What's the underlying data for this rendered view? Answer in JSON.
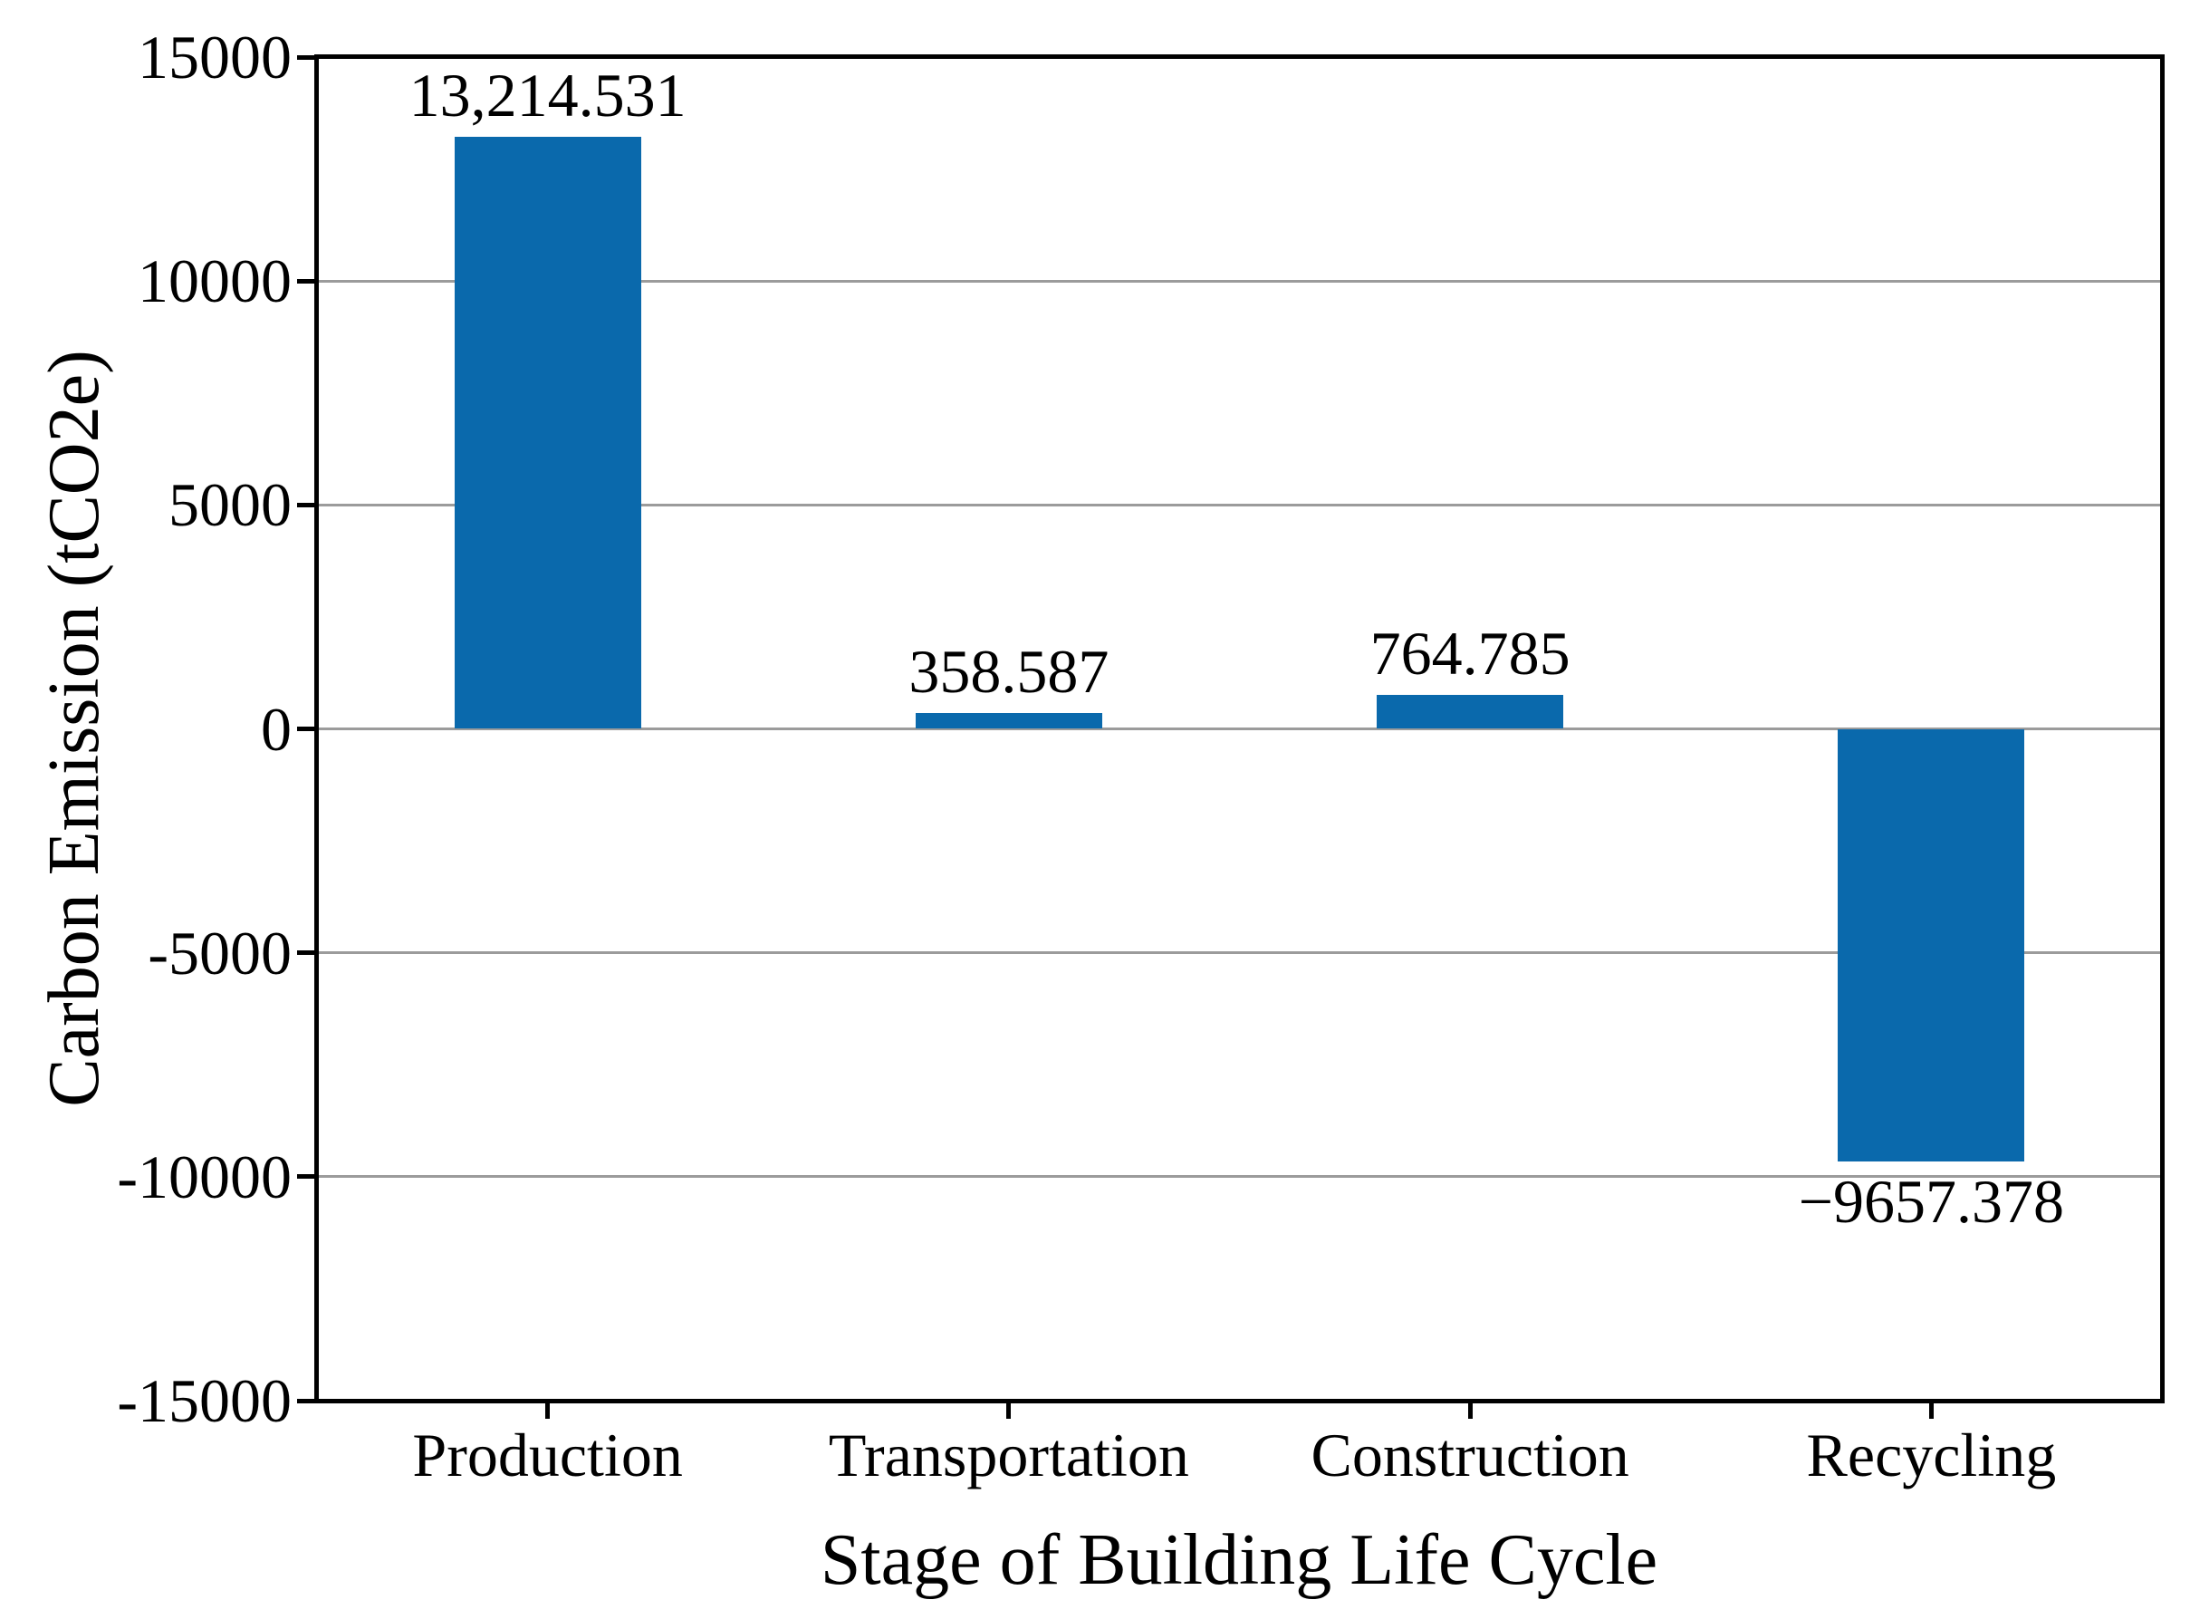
{
  "chart_data": {
    "type": "bar",
    "title": "",
    "categories": [
      "Production",
      "Transportation",
      "Construction",
      "Recycling"
    ],
    "values": [
      13214.531,
      358.587,
      764.785,
      -9657.378
    ],
    "value_labels": [
      "13,214.531",
      "358.587",
      "764.785",
      "−9657.378"
    ],
    "xlabel": "Stage of Building Life Cycle",
    "ylabel": "Carbon Emission (tCO2e)",
    "ylim": [
      -15000,
      15000
    ],
    "yticks": [
      {
        "value": 15000,
        "label": "15000"
      },
      {
        "value": 10000,
        "label": "10000"
      },
      {
        "value": 5000,
        "label": "5000"
      },
      {
        "value": 0,
        "label": "0"
      },
      {
        "value": -5000,
        "label": "-5000"
      },
      {
        "value": -10000,
        "label": "-10000"
      },
      {
        "value": -15000,
        "label": "-15000"
      }
    ],
    "grid": "horizontal",
    "legend": "none",
    "bar_color": "#0a69ac",
    "grid_color": "#9b9b9b",
    "axis_color": "#000000",
    "text_color": "#000000"
  }
}
